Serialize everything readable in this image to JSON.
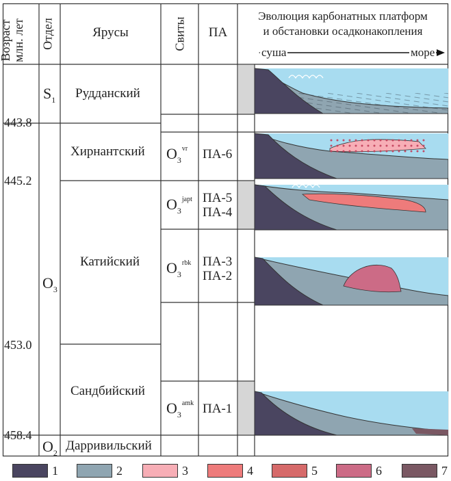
{
  "header": {
    "age": [
      "Возраст",
      "млн. лет"
    ],
    "division": "Отдел",
    "stages": "Ярусы",
    "formations": "Свиты",
    "pa": "ПА",
    "evolution": [
      "Эволюция карбонатных платформ",
      "и обстановки осадконакопления"
    ],
    "land": "суша",
    "sea": "море"
  },
  "ages": [
    "443.8",
    "445.2",
    "453.0",
    "458.4"
  ],
  "divisions": {
    "s1": {
      "base": "S",
      "sub": "1"
    },
    "o3": {
      "base": "O",
      "sub": "3"
    },
    "o2": {
      "base": "O",
      "sub": "2"
    }
  },
  "stages": {
    "rhuddanian": "Рудданский",
    "hirnantian": "Хирнантский",
    "katian": "Катийский",
    "sandbian": "Сандбийский",
    "darriwilian": "Дарривильский"
  },
  "formations": {
    "vr": {
      "base": "O",
      "sub": "3",
      "sup": "vr"
    },
    "japt": {
      "base": "O",
      "sub": "3",
      "sup": "japt"
    },
    "rbk": {
      "base": "O",
      "sub": "3",
      "sup": "rbk"
    },
    "amk": {
      "base": "O",
      "sub": "3",
      "sup": "amk"
    }
  },
  "pa": {
    "pa6": "ПА-6",
    "pa5": "ПА-5",
    "pa4": "ПА-4",
    "pa3": "ПА-3",
    "pa2": "ПА-2",
    "pa1": "ПА-1"
  },
  "legend": [
    {
      "label": "1",
      "color": "#4a4560"
    },
    {
      "label": "2",
      "color": "#8fa5b1"
    },
    {
      "label": "3",
      "color": "#f7aeb6"
    },
    {
      "label": "4",
      "color": "#ee7b7b"
    },
    {
      "label": "5",
      "color": "#d66a6a"
    },
    {
      "label": "6",
      "color": "#cc6b86"
    },
    {
      "label": "7",
      "color": "#7a5863"
    }
  ],
  "colors": {
    "water": "#a8dcf0",
    "gap": "#d6d6d6",
    "basement": "#4a4560",
    "slope": "#8fa5b1"
  }
}
